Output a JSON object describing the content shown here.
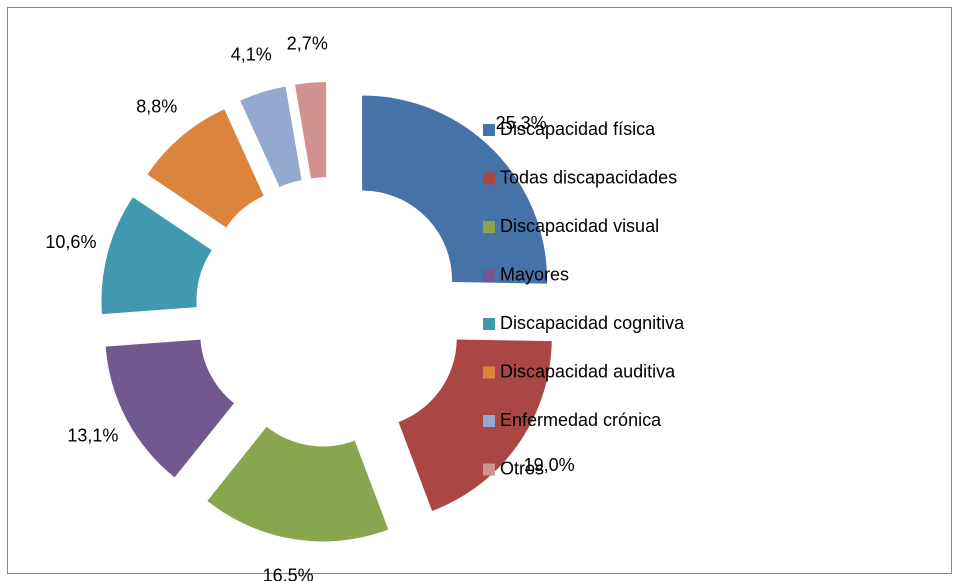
{
  "chart_data": {
    "type": "donut",
    "categories": [
      "Discapacidad física",
      "Todas discapacidades",
      "Discapacidad visual",
      "Mayores",
      "Discapacidad cognitiva",
      "Discapacidad auditiva",
      "Enfermedad crónica",
      "Otros"
    ],
    "values": [
      25.3,
      19.0,
      16.5,
      13.1,
      10.6,
      8.8,
      4.1,
      2.7
    ],
    "value_labels": [
      "25,3%",
      "19,0%",
      "16,5%",
      "13,1%",
      "10,6%",
      "8,8%",
      "4,1%",
      "2,7%"
    ],
    "colors": [
      "#4572a7",
      "#aa4643",
      "#89a54e",
      "#71588f",
      "#4198af",
      "#db843d",
      "#93a9cf",
      "#d19392"
    ],
    "legend": "right"
  }
}
